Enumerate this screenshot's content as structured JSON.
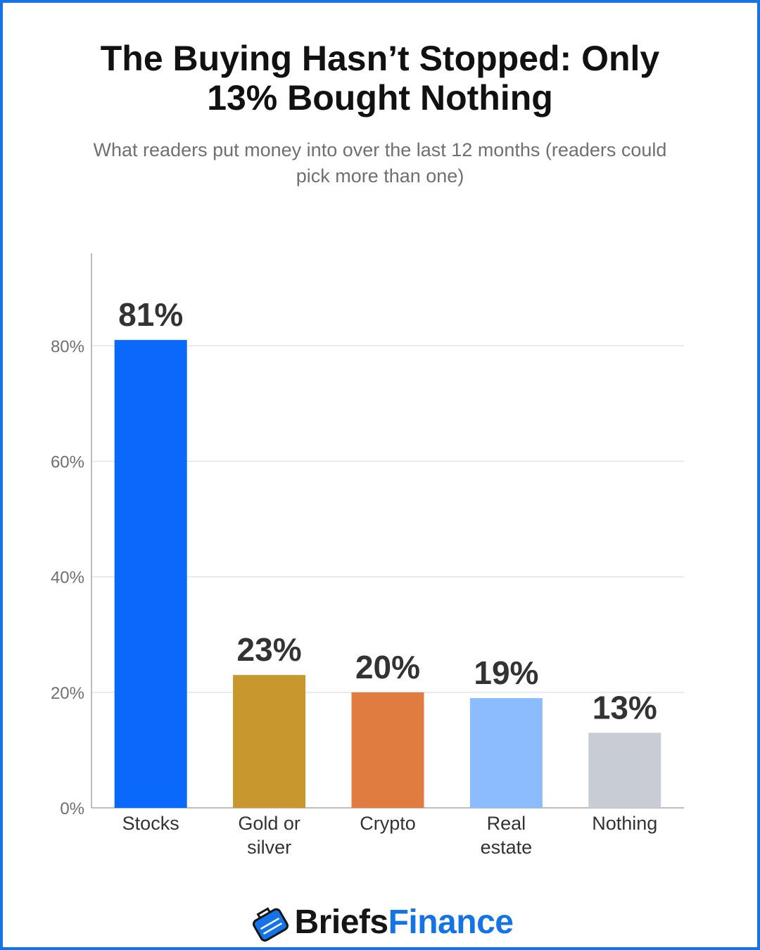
{
  "header": {
    "title": "The Buying Hasn’t Stopped: Only 13% Bought Nothing",
    "subtitle": "What readers put money into over the last 12 months (readers could pick more than one)"
  },
  "chart_data": {
    "type": "bar",
    "title": "The Buying Hasn’t Stopped: Only 13% Bought Nothing",
    "subtitle": "What readers put money into over the last 12 months (readers could pick more than one)",
    "categories": [
      [
        "Stocks"
      ],
      [
        "Gold or",
        "silver"
      ],
      [
        "Crypto"
      ],
      [
        "Real",
        "estate"
      ],
      [
        "Nothing"
      ]
    ],
    "values": [
      81,
      23,
      20,
      19,
      13
    ],
    "value_labels": [
      "81%",
      "23%",
      "20%",
      "19%",
      "13%"
    ],
    "colors": [
      "#0a69fb",
      "#c8972d",
      "#e07c40",
      "#8cbcfd",
      "#c8ccd5"
    ],
    "ylim": [
      0,
      96
    ],
    "yticks": [
      0,
      20,
      40,
      60,
      80
    ],
    "ytick_labels": [
      "0%",
      "20%",
      "40%",
      "60%",
      "80%"
    ],
    "xlabel": "",
    "ylabel": "",
    "grid": true,
    "legend": "none"
  },
  "brand": {
    "icon": "briefcase-logo-icon",
    "name_part1": "Briefs",
    "name_part2": "Finance",
    "colors": {
      "dark": "#151515",
      "accent": "#1473e6"
    }
  }
}
